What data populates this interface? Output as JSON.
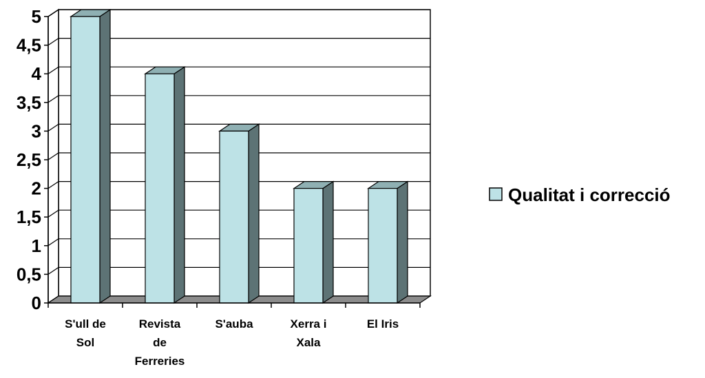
{
  "chart_data": {
    "type": "bar",
    "categories": [
      [
        "S'ull de",
        "Sol"
      ],
      [
        "Revista",
        "de",
        "Ferreries"
      ],
      [
        "S'auba"
      ],
      [
        "Xerra i",
        "Xala"
      ],
      [
        "El Iris"
      ]
    ],
    "series": [
      {
        "name": "Qualitat i correcció",
        "values": [
          5,
          4,
          3,
          2,
          2
        ]
      }
    ],
    "ylim": [
      0,
      5
    ],
    "yticks": [
      "0",
      "0,5",
      "1",
      "1,5",
      "2",
      "2,5",
      "3",
      "3,5",
      "4",
      "4,5",
      "5"
    ],
    "grid": true,
    "legend_position": "right",
    "colors": {
      "bar_front": "#bde2e6",
      "bar_side": "#5d7375",
      "bar_top": "#8fb0b3",
      "floor": "#8c8c8c",
      "grid": "#000000"
    }
  }
}
